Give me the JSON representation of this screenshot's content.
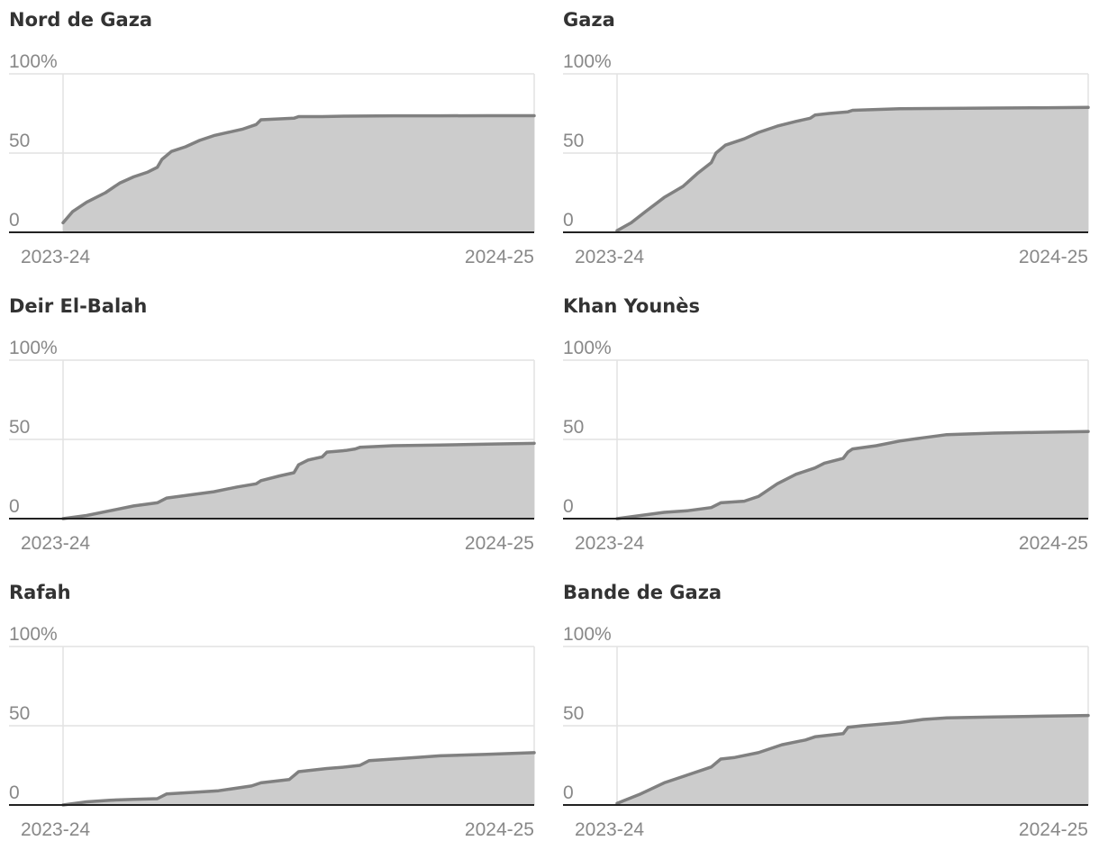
{
  "chart_data": [
    {
      "type": "area",
      "title": "Nord de Gaza",
      "yticks": [
        "0",
        "50",
        "100%"
      ],
      "xticks": [
        "2023-24",
        "2024-25"
      ],
      "ylim": [
        0,
        100
      ],
      "grid": true,
      "color": "#808080",
      "fill": "#cccccc",
      "series": [
        {
          "x": [
            0,
            0.02,
            0.05,
            0.09,
            0.12,
            0.15,
            0.18,
            0.2,
            0.21,
            0.23,
            0.26,
            0.29,
            0.32,
            0.35,
            0.38,
            0.41,
            0.42,
            0.45,
            0.49,
            0.5,
            0.55,
            0.6,
            0.7,
            0.8,
            0.9,
            1.0
          ],
          "y": [
            6,
            13,
            19,
            25,
            31,
            35,
            38,
            41,
            46,
            51,
            54,
            58,
            61,
            63,
            65,
            68,
            71,
            71.5,
            72,
            73,
            73,
            73.3,
            73.5,
            73.5,
            73.6,
            73.6
          ]
        }
      ]
    },
    {
      "type": "area",
      "title": "Gaza",
      "yticks": [
        "0",
        "50",
        "100%"
      ],
      "xticks": [
        "2023-24",
        "2024-25"
      ],
      "ylim": [
        0,
        100
      ],
      "grid": true,
      "color": "#808080",
      "fill": "#cccccc",
      "series": [
        {
          "x": [
            0,
            0.03,
            0.06,
            0.1,
            0.14,
            0.17,
            0.2,
            0.21,
            0.23,
            0.27,
            0.3,
            0.34,
            0.38,
            0.41,
            0.42,
            0.45,
            0.49,
            0.5,
            0.55,
            0.6,
            0.7,
            0.8,
            0.9,
            1.0
          ],
          "y": [
            1,
            6,
            13,
            22,
            29,
            37,
            44,
            50,
            55,
            59,
            63,
            67,
            70,
            72,
            74,
            75,
            76,
            77,
            77.5,
            78,
            78.2,
            78.4,
            78.6,
            78.8
          ]
        }
      ]
    },
    {
      "type": "area",
      "title": "Deir El-Balah",
      "yticks": [
        "0",
        "50",
        "100%"
      ],
      "xticks": [
        "2023-24",
        "2024-25"
      ],
      "ylim": [
        0,
        100
      ],
      "grid": true,
      "color": "#808080",
      "fill": "#cccccc",
      "series": [
        {
          "x": [
            0,
            0.05,
            0.1,
            0.15,
            0.2,
            0.22,
            0.27,
            0.32,
            0.37,
            0.41,
            0.42,
            0.46,
            0.49,
            0.5,
            0.52,
            0.55,
            0.56,
            0.6,
            0.62,
            0.63,
            0.7,
            0.8,
            0.9,
            1.0
          ],
          "y": [
            0,
            2,
            5,
            8,
            10,
            13,
            15,
            17,
            20,
            22,
            24,
            27,
            29,
            34,
            37,
            39,
            42,
            43,
            44,
            45,
            46,
            46.5,
            47,
            47.5
          ]
        }
      ]
    },
    {
      "type": "area",
      "title": "Khan Younès",
      "yticks": [
        "0",
        "50",
        "100%"
      ],
      "xticks": [
        "2023-24",
        "2024-25"
      ],
      "ylim": [
        0,
        100
      ],
      "grid": true,
      "color": "#808080",
      "fill": "#cccccc",
      "series": [
        {
          "x": [
            0,
            0.05,
            0.1,
            0.15,
            0.2,
            0.22,
            0.27,
            0.3,
            0.34,
            0.38,
            0.42,
            0.44,
            0.48,
            0.49,
            0.5,
            0.55,
            0.6,
            0.65,
            0.7,
            0.8,
            0.9,
            1.0
          ],
          "y": [
            0,
            2,
            4,
            5,
            7,
            10,
            11,
            14,
            22,
            28,
            32,
            35,
            38,
            42,
            44,
            46,
            49,
            51,
            53,
            54,
            54.5,
            55
          ]
        }
      ]
    },
    {
      "type": "area",
      "title": "Rafah",
      "yticks": [
        "0",
        "50",
        "100%"
      ],
      "xticks": [
        "2023-24",
        "2024-25"
      ],
      "ylim": [
        0,
        100
      ],
      "grid": true,
      "color": "#808080",
      "fill": "#cccccc",
      "series": [
        {
          "x": [
            0,
            0.05,
            0.1,
            0.15,
            0.2,
            0.22,
            0.28,
            0.33,
            0.4,
            0.42,
            0.48,
            0.5,
            0.53,
            0.56,
            0.6,
            0.63,
            0.65,
            0.7,
            0.75,
            0.8,
            0.9,
            1.0
          ],
          "y": [
            0,
            2,
            3,
            3.5,
            4,
            7,
            8,
            9,
            12,
            14,
            16,
            21,
            22,
            23,
            24,
            25,
            28,
            29,
            30,
            31,
            32,
            33
          ]
        }
      ]
    },
    {
      "type": "area",
      "title": "Bande de Gaza",
      "yticks": [
        "0",
        "50",
        "100%"
      ],
      "xticks": [
        "2023-24",
        "2024-25"
      ],
      "ylim": [
        0,
        100
      ],
      "grid": true,
      "color": "#808080",
      "fill": "#cccccc",
      "series": [
        {
          "x": [
            0,
            0.05,
            0.1,
            0.15,
            0.2,
            0.22,
            0.25,
            0.3,
            0.35,
            0.4,
            0.42,
            0.48,
            0.49,
            0.52,
            0.56,
            0.6,
            0.65,
            0.7,
            0.8,
            0.9,
            1.0
          ],
          "y": [
            1,
            7,
            14,
            19,
            24,
            29,
            30,
            33,
            38,
            41,
            43,
            45,
            49,
            50,
            51,
            52,
            54,
            55,
            55.5,
            56,
            56.5
          ]
        }
      ]
    }
  ]
}
